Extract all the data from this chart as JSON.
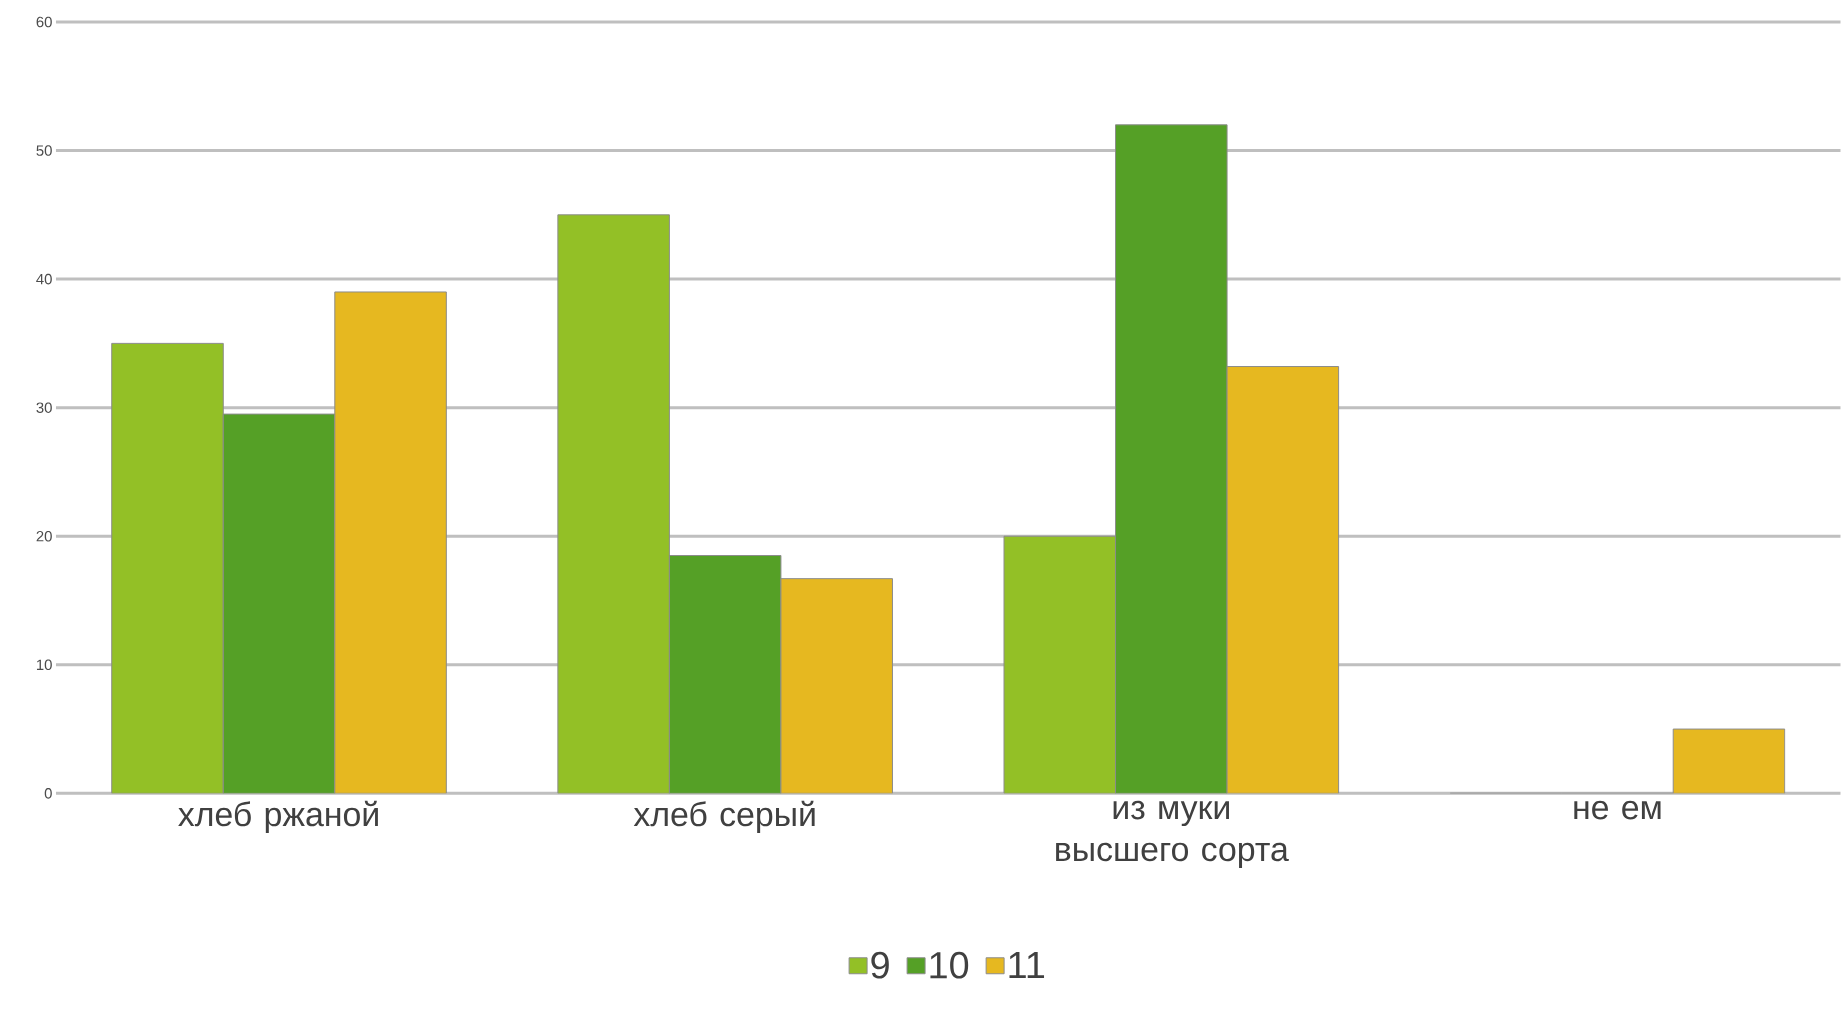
{
  "chart_data": {
    "type": "bar",
    "categories": [
      "хлеб ржаной",
      "хлеб серый",
      "из муки высшего сорта",
      "не ем"
    ],
    "series": [
      {
        "name": "9",
        "color": "#93c026",
        "values": [
          35,
          45,
          20,
          0
        ]
      },
      {
        "name": "10",
        "color": "#55a026",
        "values": [
          29.5,
          18.5,
          52,
          0
        ]
      },
      {
        "name": "11",
        "color": "#e6b820",
        "values": [
          39,
          16.7,
          33.2,
          5
        ]
      }
    ],
    "ylim": [
      0,
      60
    ],
    "yticks": [
      0,
      10,
      20,
      30,
      40,
      50,
      60
    ],
    "grid": "y",
    "legend": "bottom"
  }
}
